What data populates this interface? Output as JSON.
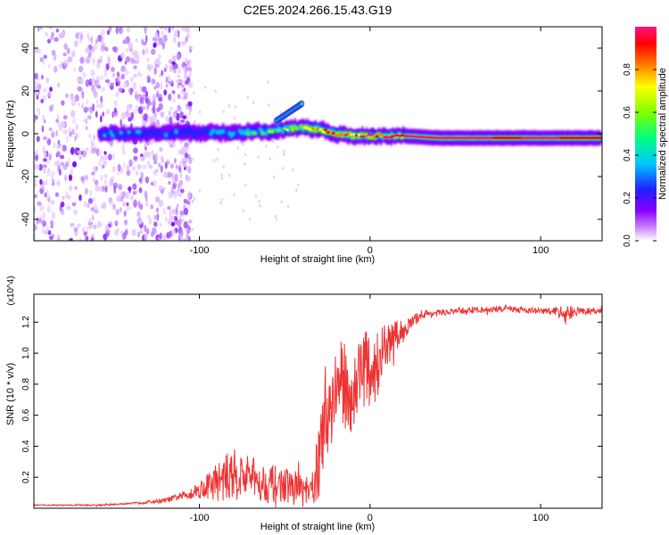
{
  "title": "C2E5.2024.266.15.43.G19",
  "chart_data": [
    {
      "type": "heatmap",
      "xlabel": "Height of straight line (km)",
      "ylabel": "Frequency (Hz)",
      "xlim": [
        -197,
        136
      ],
      "ylim": [
        -50,
        50
      ],
      "xticks": [
        -100,
        0,
        100
      ],
      "yticks": [
        -40,
        -20,
        0,
        20,
        40
      ],
      "colorbar": {
        "label": "Normalized spectral amplitude",
        "range": [
          0,
          1
        ],
        "ticks": [
          "0.0",
          "0.2",
          "0.4",
          "0.6",
          "0.8"
        ],
        "colormap": [
          "#ffffff",
          "#cc88ff",
          "#8800ff",
          "#2020ff",
          "#00c8ff",
          "#00ff80",
          "#80ff00",
          "#ffff00",
          "#ff8000",
          "#ff0000",
          "#ff1080"
        ]
      },
      "ridge": {
        "x": [
          -155,
          -140,
          -125,
          -110,
          -100,
          -90,
          -80,
          -70,
          -60,
          -50,
          -40,
          -30,
          -20,
          -10,
          0,
          10,
          20,
          40,
          60,
          80,
          100,
          120,
          136
        ],
        "frequency_hz": [
          0,
          0,
          0,
          1,
          0,
          1,
          0,
          1,
          1,
          2,
          3,
          2,
          0,
          -1,
          -1,
          -1,
          -1,
          -2,
          -2,
          -2,
          -2,
          -2,
          -2
        ],
        "amplitude": [
          0.35,
          0.3,
          0.3,
          0.3,
          0.3,
          0.35,
          0.4,
          0.45,
          0.45,
          0.5,
          0.55,
          0.65,
          0.85,
          0.8,
          0.85,
          0.95,
          0.95,
          0.95,
          0.95,
          0.9,
          0.95,
          0.9,
          0.9
        ]
      },
      "secondary_feature": {
        "x": [
          -55,
          -40
        ],
        "frequency_hz": [
          6,
          14
        ],
        "amplitude": 0.45
      }
    },
    {
      "type": "line",
      "xlabel": "Height of straight line (km)",
      "ylabel": "SNR (10 * v/v)",
      "y_multiplier": "(x10^4)",
      "xlim": [
        -197,
        136
      ],
      "ylim": [
        0,
        1.38
      ],
      "xticks": [
        -100,
        0,
        100
      ],
      "yticks": [
        "0.2",
        "0.4",
        "0.6",
        "0.8",
        "1.0",
        "1.2"
      ],
      "color": "#ee3333",
      "series": [
        {
          "x": [
            -197,
            -160,
            -140,
            -120,
            -110,
            -100,
            -90,
            -80,
            -70,
            -60,
            -50,
            -40,
            -35,
            -30,
            -25,
            -20,
            -15,
            -10,
            -5,
            0,
            5,
            10,
            15,
            20,
            25,
            30,
            40,
            50,
            60,
            70,
            80,
            90,
            100,
            110,
            115,
            120,
            136
          ],
          "y": [
            0.02,
            0.02,
            0.03,
            0.05,
            0.08,
            0.12,
            0.17,
            0.22,
            0.2,
            0.16,
            0.15,
            0.12,
            0.08,
            0.3,
            0.6,
            0.78,
            0.8,
            0.7,
            0.95,
            0.85,
            0.95,
            1.05,
            1.1,
            1.15,
            1.2,
            1.25,
            1.26,
            1.27,
            1.28,
            1.28,
            1.29,
            1.28,
            1.27,
            1.27,
            1.25,
            1.27,
            1.27
          ],
          "noise": [
            0.002,
            0.004,
            0.004,
            0.01,
            0.02,
            0.04,
            0.09,
            0.12,
            0.1,
            0.09,
            0.08,
            0.08,
            0.07,
            0.18,
            0.2,
            0.22,
            0.2,
            0.18,
            0.2,
            0.18,
            0.15,
            0.1,
            0.08,
            0.05,
            0.03,
            0.02,
            0.015,
            0.015,
            0.015,
            0.015,
            0.015,
            0.015,
            0.015,
            0.02,
            0.05,
            0.02,
            0.015
          ]
        }
      ]
    }
  ]
}
